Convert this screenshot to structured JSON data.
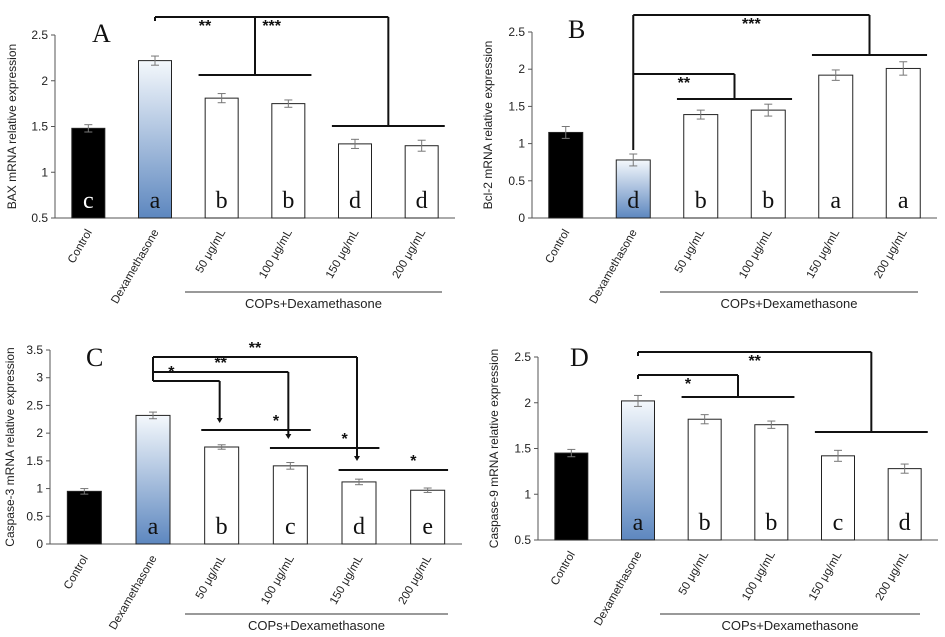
{
  "colors": {
    "control": "#000000",
    "dex_top": "#f4f8fc",
    "dex_bottom": "#5d87bf",
    "treated": "#ffffff",
    "axis": "#555555"
  },
  "chart_data": [
    {
      "panel": "A",
      "type": "bar",
      "ylabel": "BAX mRNA relative expression",
      "ylim": [
        0.5,
        2.5
      ],
      "yticks": [
        "0.5",
        "1",
        "1.5",
        "2",
        "2.5"
      ],
      "categories": [
        "Control",
        "Dexamethasone",
        "50 μg/mL",
        "100 μg/mL",
        "150 μg/mL",
        "200 μg/mL"
      ],
      "values": [
        1.48,
        2.22,
        1.81,
        1.75,
        1.31,
        1.29
      ],
      "errors": [
        0.04,
        0.05,
        0.05,
        0.04,
        0.05,
        0.06
      ],
      "letters": [
        "c",
        "a",
        "b",
        "b",
        "d",
        "d"
      ],
      "group_label": "COPs+Dexamethasone",
      "brackets": [
        {
          "label": "**",
          "from": 1,
          "to": [
            2,
            3
          ]
        },
        {
          "label": "***",
          "from": 1,
          "to": [
            4,
            5
          ]
        }
      ]
    },
    {
      "panel": "B",
      "type": "bar",
      "ylabel": "Bcl-2 mRNA relative expression",
      "ylim": [
        0,
        2.5
      ],
      "yticks": [
        "0",
        "0.5",
        "1",
        "1.5",
        "2",
        "2.5"
      ],
      "categories": [
        "Control",
        "Dexamethasone",
        "50 μg/mL",
        "100 μg/mL",
        "150 μg/mL",
        "200 μg/mL"
      ],
      "values": [
        1.15,
        0.78,
        1.39,
        1.45,
        1.92,
        2.01
      ],
      "errors": [
        0.08,
        0.08,
        0.06,
        0.08,
        0.07,
        0.09
      ],
      "letters": [
        "",
        "d",
        "b",
        "b",
        "a",
        "a"
      ],
      "group_label": "COPs+Dexamethasone",
      "brackets": [
        {
          "label": "**",
          "from": 1,
          "to": [
            2,
            3
          ]
        },
        {
          "label": "***",
          "from": 1,
          "to": [
            4,
            5
          ]
        }
      ]
    },
    {
      "panel": "C",
      "type": "bar",
      "ylabel": "Caspase-3 mRNA relative expression",
      "ylim": [
        0,
        3.5
      ],
      "yticks": [
        "0",
        "0.5",
        "1",
        "1.5",
        "2",
        "2.5",
        "3",
        "3.5"
      ],
      "categories": [
        "Control",
        "Dexamethasone",
        "50 μg/mL",
        "100 μg/mL",
        "150 μg/mL",
        "200 μg/mL"
      ],
      "values": [
        0.95,
        2.32,
        1.75,
        1.41,
        1.12,
        0.97
      ],
      "errors": [
        0.05,
        0.06,
        0.04,
        0.06,
        0.05,
        0.04
      ],
      "letters": [
        "",
        "a",
        "b",
        "c",
        "d",
        "e"
      ],
      "group_label": "COPs+Dexamethasone",
      "brackets": [
        {
          "label": "*",
          "from": 1,
          "to": [
            2
          ]
        },
        {
          "label": "**",
          "from": 1,
          "to": [
            3
          ]
        },
        {
          "label": "**",
          "from": 1,
          "to": [
            4
          ]
        }
      ],
      "pair_lines": [
        {
          "label": "*",
          "from": 2,
          "to": 3
        },
        {
          "label": "*",
          "from": 3,
          "to": 4
        },
        {
          "label": "*",
          "from": 4,
          "to": 5
        }
      ]
    },
    {
      "panel": "D",
      "type": "bar",
      "ylabel": "Caspase-9 mRNA relative expression",
      "ylim": [
        0.5,
        2.5
      ],
      "yticks": [
        "0.5",
        "1",
        "1.5",
        "2",
        "2.5"
      ],
      "categories": [
        "Control",
        "Dexamethasone",
        "50 μg/mL",
        "100 μg/mL",
        "150 μg/mL",
        "200 μg/mL"
      ],
      "values": [
        1.45,
        2.02,
        1.82,
        1.76,
        1.42,
        1.28
      ],
      "errors": [
        0.04,
        0.06,
        0.05,
        0.04,
        0.06,
        0.05
      ],
      "letters": [
        "",
        "a",
        "b",
        "b",
        "c",
        "d"
      ],
      "group_label": "COPs+Dexamethasone",
      "brackets": [
        {
          "label": "*",
          "from": 1,
          "to": [
            2,
            3
          ]
        },
        {
          "label": "**",
          "from": 1,
          "to": [
            4,
            5
          ]
        }
      ]
    }
  ]
}
